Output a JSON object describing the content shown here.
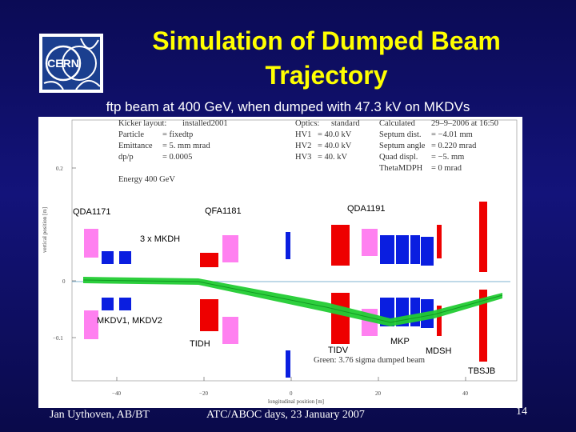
{
  "slide": {
    "title_line1": "Simulation of Dumped Beam",
    "title_line2": "Trajectory",
    "subtitle": "ftp beam at 400 GeV, when dumped with 47.3 kV on MKDVs",
    "logo_text": "CERN"
  },
  "info_left": {
    "kicker_label": "Kicker layout:",
    "kicker_value": "installed2001",
    "particle_label": "Particle",
    "particle_value": "= fixedtp",
    "emittance_label": "Emittance",
    "emittance_value": "= 5.     mm mrad",
    "dpp_label": "dp/p",
    "dpp_value": "= 0.0005",
    "energy": "Energy   400  GeV"
  },
  "info_mid": {
    "optics_label": "Optics:",
    "optics_value": "standard",
    "hv1_label": "HV1",
    "hv1_value": "= 40.0 kV",
    "hv2_label": "HV2",
    "hv2_value": "= 40.0 kV",
    "hv3_label": "HV3",
    "hv3_value": "= 40.  kV"
  },
  "info_right": {
    "calculated_label": "Calculated",
    "calculated_value": "29–9–2006  at 16:50",
    "septum_dist_label": "Septum dist.",
    "septum_dist_value": "=   −4.01  mm",
    "septum_angle_label": "Septum angle",
    "septum_angle_value": "=   0.220  mrad",
    "quad_label": "Quad displ.",
    "quad_value": "=   −5.     mm",
    "theta_label": "ThetaMDPH",
    "theta_value": "=   0          mrad"
  },
  "labels": {
    "qda1171": "QDA1171",
    "qfa1181": "QFA1181",
    "qda1191": "QDA1191",
    "mkdh": "3 x MKDH",
    "mkdv": "MKDV1, MKDV2",
    "tidh": "TIDH",
    "tidv": "TIDV",
    "mkp": "MKP",
    "mdsh": "MDSH",
    "tbsjb": "TBSJB",
    "legend_green": "Green: 3.76 sigma dumped beam"
  },
  "axes": {
    "ylabel": "vertical position [m]",
    "xlabel": "longitudinal position [m]",
    "yticks": [
      "0.2",
      "0.1",
      "0",
      "−0.1"
    ],
    "xticks": [
      "−40",
      "−20",
      "0",
      "20",
      "40"
    ]
  },
  "footer": {
    "author": "Jan Uythoven, AB/BT",
    "event": "ATC/ABOC days, 23 January 2007",
    "page": "14"
  },
  "colors": {
    "title": "#ffff00",
    "red_element": "#ee0000",
    "blue_element": "#0a1ee0",
    "pink_element": "#ff80f0",
    "beam_green": "#22cc33"
  }
}
